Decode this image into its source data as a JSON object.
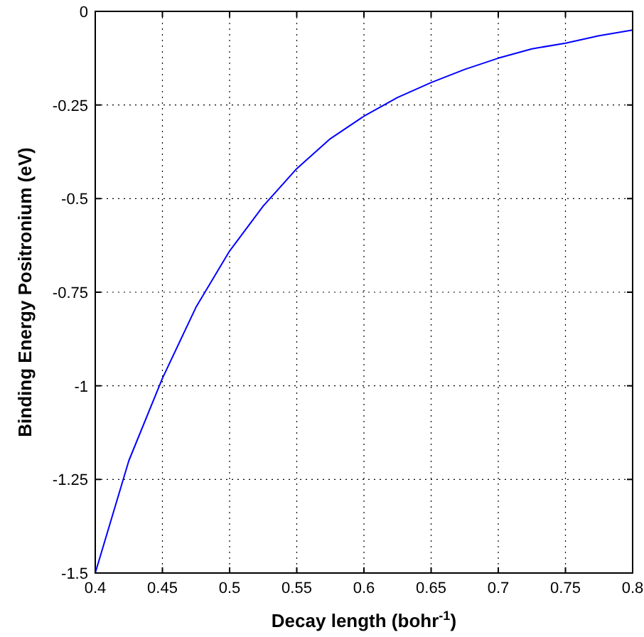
{
  "chart_data": {
    "type": "line",
    "xlabel": "Decay length (bohr$^{-1}$)",
    "ylabel": "Binding Energy Positronium (eV)",
    "x": [
      0.4,
      0.425,
      0.45,
      0.475,
      0.5,
      0.525,
      0.55,
      0.575,
      0.6,
      0.625,
      0.65,
      0.675,
      0.7,
      0.725,
      0.75,
      0.775,
      0.8
    ],
    "series": [
      {
        "color": "#0000ff",
        "values": [
          -1.5,
          -1.2,
          -0.98,
          -0.79,
          -0.64,
          -0.52,
          -0.42,
          -0.34,
          -0.28,
          -0.23,
          -0.19,
          -0.155,
          -0.125,
          -0.1,
          -0.085,
          -0.065,
          -0.05
        ]
      }
    ],
    "xlim": [
      0.4,
      0.8
    ],
    "ylim": [
      -1.5,
      0
    ],
    "xticks": [
      0.4,
      0.45,
      0.5,
      0.55,
      0.6,
      0.65,
      0.7,
      0.75,
      0.8
    ],
    "yticks": [
      -1.5,
      -1.25,
      -1,
      -0.75,
      -0.5,
      -0.25,
      0
    ],
    "grid": true,
    "line_style": "solid",
    "marker": "none"
  }
}
